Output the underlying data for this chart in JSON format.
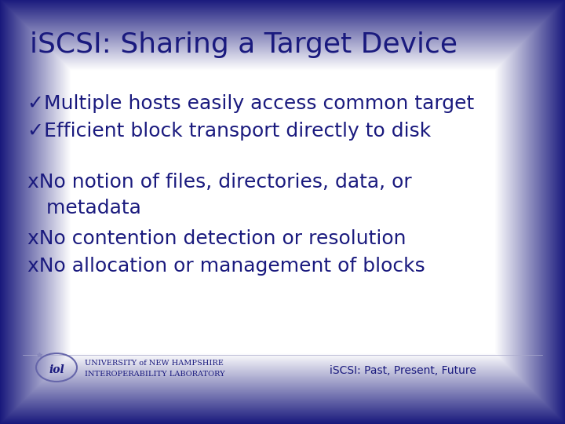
{
  "title": "iSCSI: Sharing a Target Device",
  "title_color": "#1a1a7e",
  "bg_center": "#ffffff",
  "bg_edge": "#1a1a7e",
  "check_items": [
    "✓Multiple hosts easily access common target",
    "✓Efficient block transport directly to disk"
  ],
  "x_line1": "xNo notion of files, directories, data, or",
  "x_line2": "   metadata",
  "x_line3": "xNo contention detection or resolution",
  "x_line4": "xNo allocation or management of blocks",
  "item_color": "#1a1a7e",
  "footer_left_line1": "UNIVERSITY of NEW HAMPSHIRE",
  "footer_left_line2": "INTEROPERABILITY LABORATORY",
  "footer_right": "iSCSI: Past, Present, Future",
  "footer_color": "#1a1a7e",
  "title_fontsize": 26,
  "body_fontsize": 18
}
